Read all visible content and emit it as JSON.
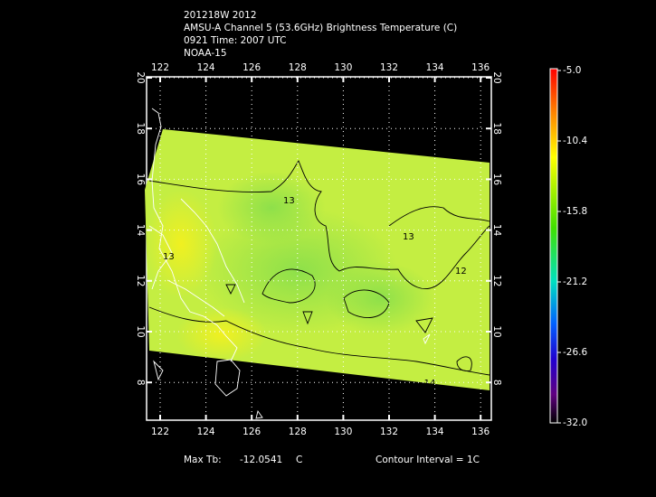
{
  "header": {
    "lines": [
      "201218W 2012",
      "AMSU-A Channel 5 (53.6GHz) Brightness Temperature (C)",
      "0921 Time: 2007 UTC",
      "NOAA-15"
    ]
  },
  "map": {
    "lon_ticks": [
      122,
      124,
      126,
      128,
      130,
      132,
      134,
      136
    ],
    "lat_ticks": [
      8,
      10,
      12,
      14,
      16,
      18,
      20
    ],
    "contour_labels": [
      "13",
      "13",
      "12",
      "13",
      "-14"
    ]
  },
  "colorbar": {
    "labels": [
      "-5.0",
      "-10.4",
      "-15.8",
      "-21.2",
      "-26.6",
      "-32.0"
    ]
  },
  "footer": {
    "max_label": "Max Tb:",
    "max_value": "-12.0541",
    "max_unit": "C",
    "contour_interval": "Contour Interval = 1C"
  }
}
